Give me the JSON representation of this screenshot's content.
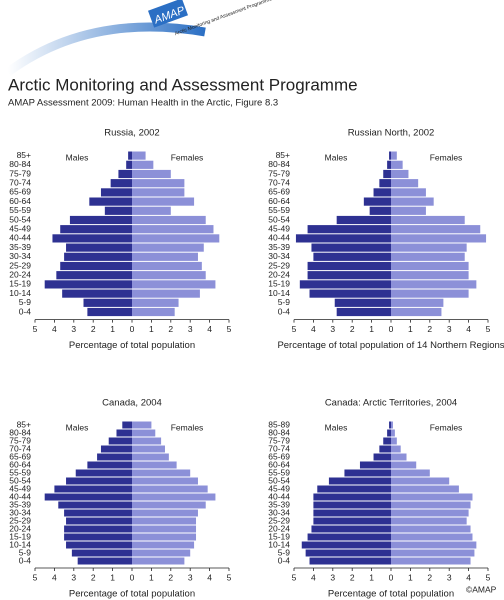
{
  "header": {
    "logo": "AMAP",
    "logo_sub": "Arctic Monitoring and Assessment Programme",
    "title": "Arctic Monitoring and Assessment Programme",
    "subtitle": "AMAP Assessment 2009: Human Health in the Arctic, Figure 8.3",
    "copyright": "©AMAP"
  },
  "chart_data": [
    {
      "type": "bar",
      "title": "Russia, 2002",
      "xlabel": "Percentage of total population",
      "categories": [
        "85+",
        "80-84",
        "75-79",
        "70-74",
        "65-69",
        "60-64",
        "55-59",
        "50-54",
        "45-49",
        "40-44",
        "35-39",
        "30-34",
        "25-29",
        "20-24",
        "15-19",
        "10-14",
        "5-9",
        "0-4"
      ],
      "series": [
        {
          "name": "Males",
          "color": "#2e3192",
          "values": [
            0.2,
            0.3,
            0.7,
            1.1,
            1.6,
            2.2,
            1.4,
            3.2,
            3.7,
            4.1,
            3.4,
            3.5,
            3.7,
            3.9,
            4.5,
            3.6,
            2.5,
            2.3
          ]
        },
        {
          "name": "Females",
          "color": "#8c90d8",
          "values": [
            0.7,
            1.1,
            2.0,
            2.7,
            2.7,
            3.2,
            2.0,
            3.8,
            4.2,
            4.5,
            3.7,
            3.4,
            3.6,
            3.8,
            4.3,
            3.5,
            2.4,
            2.2
          ]
        }
      ],
      "xlim": [
        0,
        5
      ],
      "xticks": [
        0,
        1,
        2,
        3,
        4,
        5
      ]
    },
    {
      "type": "bar",
      "title": "Russian North, 2002",
      "xlabel": "Percentage of total population of 14 Northern Regions",
      "categories": [
        "85+",
        "80-84",
        "75-79",
        "70-74",
        "65-69",
        "60-64",
        "55-59",
        "50-54",
        "45-49",
        "40-44",
        "35-39",
        "30-34",
        "25-29",
        "20-24",
        "15-19",
        "10-14",
        "5-9",
        "0-4"
      ],
      "series": [
        {
          "name": "Males",
          "color": "#2e3192",
          "values": [
            0.1,
            0.2,
            0.4,
            0.6,
            0.9,
            1.4,
            1.1,
            2.8,
            4.3,
            4.9,
            4.1,
            4.0,
            4.3,
            4.3,
            4.7,
            4.2,
            2.9,
            2.8
          ]
        },
        {
          "name": "Females",
          "color": "#8c90d8",
          "values": [
            0.3,
            0.6,
            0.9,
            1.4,
            1.8,
            2.2,
            1.8,
            3.8,
            4.6,
            4.9,
            3.9,
            3.8,
            4.0,
            4.0,
            4.4,
            4.0,
            2.7,
            2.6
          ]
        }
      ],
      "xlim": [
        0,
        5
      ],
      "xticks": [
        0,
        1,
        2,
        3,
        4,
        5
      ]
    },
    {
      "type": "bar",
      "title": "Canada, 2004",
      "xlabel": "Percentage of total population",
      "categories": [
        "85+",
        "80-84",
        "75-79",
        "70-74",
        "65-69",
        "60-64",
        "55-59",
        "50-54",
        "45-49",
        "40-44",
        "35-39",
        "30-34",
        "25-29",
        "20-24",
        "15-19",
        "10-14",
        "5-9",
        "0-4"
      ],
      "series": [
        {
          "name": "Males",
          "color": "#2e3192",
          "values": [
            0.5,
            0.8,
            1.2,
            1.6,
            1.8,
            2.3,
            2.9,
            3.4,
            4.0,
            4.5,
            3.8,
            3.5,
            3.4,
            3.5,
            3.5,
            3.4,
            3.1,
            2.8
          ]
        },
        {
          "name": "Females",
          "color": "#8c90d8",
          "values": [
            1.0,
            1.2,
            1.5,
            1.7,
            1.9,
            2.3,
            3.0,
            3.4,
            3.9,
            4.3,
            3.8,
            3.4,
            3.3,
            3.3,
            3.3,
            3.2,
            3.0,
            2.7
          ]
        }
      ],
      "xlim": [
        0,
        5
      ],
      "xticks": [
        0,
        1,
        2,
        3,
        4,
        5
      ]
    },
    {
      "type": "bar",
      "title": "Canada: Arctic Territories, 2004",
      "xlabel": "Percentage of total population",
      "categories": [
        "85-89",
        "80-84",
        "75-79",
        "70-74",
        "65-69",
        "60-64",
        "55-59",
        "50-54",
        "45-49",
        "40-44",
        "35-39",
        "30-34",
        "25-29",
        "20-24",
        "15-19",
        "10-14",
        "5-9",
        "0-4"
      ],
      "series": [
        {
          "name": "Males",
          "color": "#2e3192",
          "values": [
            0.1,
            0.2,
            0.4,
            0.6,
            0.9,
            1.6,
            2.4,
            3.2,
            3.8,
            4.0,
            4.0,
            4.0,
            4.0,
            4.1,
            4.3,
            4.6,
            4.4,
            4.2
          ]
        },
        {
          "name": "Females",
          "color": "#8c90d8",
          "values": [
            0.1,
            0.2,
            0.3,
            0.5,
            0.8,
            1.3,
            2.0,
            3.0,
            3.5,
            4.2,
            4.1,
            4.0,
            3.9,
            4.1,
            4.2,
            4.4,
            4.3,
            4.1
          ]
        }
      ],
      "xlim": [
        0,
        5
      ],
      "xticks": [
        0,
        1,
        2,
        3,
        4,
        5
      ]
    }
  ]
}
